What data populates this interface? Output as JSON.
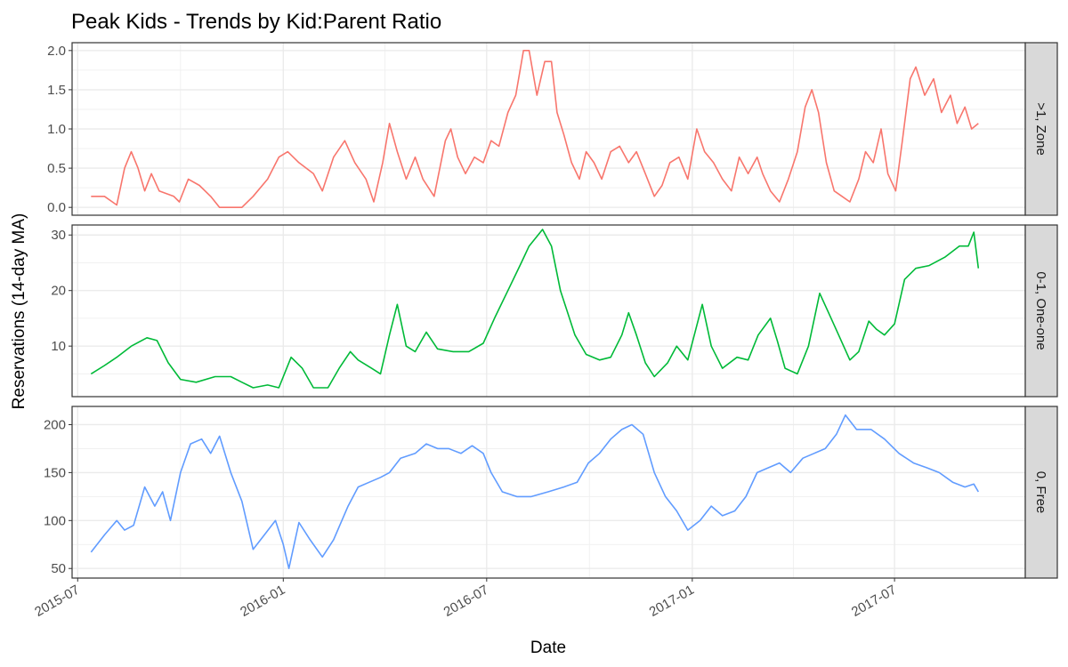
{
  "chart_data": {
    "type": "line",
    "title": "Peak Kids - Trends by Kid:Parent Ratio",
    "xlabel": "Date",
    "ylabel": "Reservations (14-day MA)",
    "x_range": [
      "2015-06-26",
      "2017-10-26"
    ],
    "x_ticks": [
      "2015-07",
      "2016-01",
      "2016-07",
      "2017-01",
      "2017-07"
    ],
    "grid": true,
    "legend": "none",
    "panels": [
      {
        "strip": ">1, Zone",
        "color": "#F8766D",
        "ylim": [
          -0.1,
          2.1
        ],
        "y_ticks": [
          "0.0",
          "0.5",
          "1.0",
          "1.5",
          "2.0"
        ],
        "points": [
          [
            "2015-07-13",
            0.14
          ],
          [
            "2015-07-25",
            0.14
          ],
          [
            "2015-08-01",
            0.07
          ],
          [
            "2015-08-05",
            0.03
          ],
          [
            "2015-08-12",
            0.5
          ],
          [
            "2015-08-18",
            0.71
          ],
          [
            "2015-08-24",
            0.5
          ],
          [
            "2015-08-30",
            0.21
          ],
          [
            "2015-09-05",
            0.43
          ],
          [
            "2015-09-12",
            0.21
          ],
          [
            "2015-09-25",
            0.14
          ],
          [
            "2015-09-30",
            0.07
          ],
          [
            "2015-10-08",
            0.36
          ],
          [
            "2015-10-18",
            0.28
          ],
          [
            "2015-10-28",
            0.14
          ],
          [
            "2015-11-05",
            0.0
          ],
          [
            "2015-11-25",
            0.0
          ],
          [
            "2015-12-05",
            0.14
          ],
          [
            "2015-12-18",
            0.36
          ],
          [
            "2015-12-28",
            0.64
          ],
          [
            "2016-01-05",
            0.71
          ],
          [
            "2016-01-15",
            0.57
          ],
          [
            "2016-01-28",
            0.43
          ],
          [
            "2016-02-05",
            0.21
          ],
          [
            "2016-02-15",
            0.64
          ],
          [
            "2016-02-25",
            0.85
          ],
          [
            "2016-03-05",
            0.57
          ],
          [
            "2016-03-15",
            0.36
          ],
          [
            "2016-03-22",
            0.07
          ],
          [
            "2016-03-30",
            0.57
          ],
          [
            "2016-04-05",
            1.07
          ],
          [
            "2016-04-12",
            0.71
          ],
          [
            "2016-04-20",
            0.36
          ],
          [
            "2016-04-28",
            0.64
          ],
          [
            "2016-05-05",
            0.36
          ],
          [
            "2016-05-15",
            0.14
          ],
          [
            "2016-05-25",
            0.85
          ],
          [
            "2016-05-30",
            1.0
          ],
          [
            "2016-06-05",
            0.64
          ],
          [
            "2016-06-12",
            0.43
          ],
          [
            "2016-06-20",
            0.64
          ],
          [
            "2016-06-28",
            0.57
          ],
          [
            "2016-07-05",
            0.85
          ],
          [
            "2016-07-12",
            0.78
          ],
          [
            "2016-07-20",
            1.21
          ],
          [
            "2016-07-27",
            1.43
          ],
          [
            "2016-08-03",
            2.0
          ],
          [
            "2016-08-08",
            2.0
          ],
          [
            "2016-08-15",
            1.43
          ],
          [
            "2016-08-22",
            1.86
          ],
          [
            "2016-08-28",
            1.86
          ],
          [
            "2016-09-02",
            1.21
          ],
          [
            "2016-09-08",
            0.93
          ],
          [
            "2016-09-15",
            0.57
          ],
          [
            "2016-09-22",
            0.36
          ],
          [
            "2016-09-28",
            0.71
          ],
          [
            "2016-10-05",
            0.57
          ],
          [
            "2016-10-12",
            0.36
          ],
          [
            "2016-10-20",
            0.71
          ],
          [
            "2016-10-28",
            0.78
          ],
          [
            "2016-11-05",
            0.57
          ],
          [
            "2016-11-12",
            0.71
          ],
          [
            "2016-11-20",
            0.43
          ],
          [
            "2016-11-28",
            0.14
          ],
          [
            "2016-12-05",
            0.28
          ],
          [
            "2016-12-12",
            0.57
          ],
          [
            "2016-12-20",
            0.64
          ],
          [
            "2016-12-28",
            0.36
          ],
          [
            "2017-01-05",
            1.0
          ],
          [
            "2017-01-12",
            0.71
          ],
          [
            "2017-01-20",
            0.57
          ],
          [
            "2017-01-28",
            0.36
          ],
          [
            "2017-02-05",
            0.21
          ],
          [
            "2017-02-12",
            0.64
          ],
          [
            "2017-02-20",
            0.43
          ],
          [
            "2017-02-28",
            0.64
          ],
          [
            "2017-03-05",
            0.43
          ],
          [
            "2017-03-12",
            0.21
          ],
          [
            "2017-03-20",
            0.07
          ],
          [
            "2017-03-28",
            0.36
          ],
          [
            "2017-04-05",
            0.71
          ],
          [
            "2017-04-12",
            1.28
          ],
          [
            "2017-04-18",
            1.5
          ],
          [
            "2017-04-24",
            1.21
          ],
          [
            "2017-05-01",
            0.57
          ],
          [
            "2017-05-08",
            0.21
          ],
          [
            "2017-05-15",
            0.14
          ],
          [
            "2017-05-22",
            0.07
          ],
          [
            "2017-05-30",
            0.36
          ],
          [
            "2017-06-05",
            0.71
          ],
          [
            "2017-06-12",
            0.57
          ],
          [
            "2017-06-19",
            1.0
          ],
          [
            "2017-06-25",
            0.43
          ],
          [
            "2017-07-02",
            0.21
          ],
          [
            "2017-07-08",
            0.85
          ],
          [
            "2017-07-15",
            1.64
          ],
          [
            "2017-07-20",
            1.79
          ],
          [
            "2017-07-28",
            1.43
          ],
          [
            "2017-08-05",
            1.64
          ],
          [
            "2017-08-12",
            1.21
          ],
          [
            "2017-08-20",
            1.43
          ],
          [
            "2017-08-26",
            1.07
          ],
          [
            "2017-09-02",
            1.28
          ],
          [
            "2017-09-08",
            1.0
          ],
          [
            "2017-09-14",
            1.07
          ]
        ]
      },
      {
        "strip": "0-1, One-one",
        "color": "#00BA38",
        "ylim": [
          0.9,
          31.8
        ],
        "y_ticks": [
          "10",
          "20",
          "30"
        ],
        "points": [
          [
            "2015-07-13",
            5.0
          ],
          [
            "2015-07-25",
            6.5
          ],
          [
            "2015-08-05",
            8.0
          ],
          [
            "2015-08-18",
            10.0
          ],
          [
            "2015-09-01",
            11.5
          ],
          [
            "2015-09-10",
            11.0
          ],
          [
            "2015-09-20",
            7.0
          ],
          [
            "2015-10-01",
            4.0
          ],
          [
            "2015-10-15",
            3.5
          ],
          [
            "2015-11-01",
            4.5
          ],
          [
            "2015-11-15",
            4.5
          ],
          [
            "2015-11-25",
            3.5
          ],
          [
            "2015-12-05",
            2.5
          ],
          [
            "2015-12-18",
            3.0
          ],
          [
            "2015-12-28",
            2.5
          ],
          [
            "2016-01-08",
            8.0
          ],
          [
            "2016-01-18",
            6.0
          ],
          [
            "2016-01-28",
            2.5
          ],
          [
            "2016-02-10",
            2.5
          ],
          [
            "2016-02-20",
            6.0
          ],
          [
            "2016-03-01",
            9.0
          ],
          [
            "2016-03-08",
            7.5
          ],
          [
            "2016-03-20",
            6.0
          ],
          [
            "2016-03-28",
            5.0
          ],
          [
            "2016-04-05",
            12.0
          ],
          [
            "2016-04-12",
            17.5
          ],
          [
            "2016-04-20",
            10.0
          ],
          [
            "2016-04-28",
            9.0
          ],
          [
            "2016-05-08",
            12.5
          ],
          [
            "2016-05-18",
            9.5
          ],
          [
            "2016-06-01",
            9.0
          ],
          [
            "2016-06-15",
            9.0
          ],
          [
            "2016-06-28",
            10.5
          ],
          [
            "2016-07-08",
            15.0
          ],
          [
            "2016-07-20",
            20.0
          ],
          [
            "2016-08-01",
            25.0
          ],
          [
            "2016-08-08",
            28.0
          ],
          [
            "2016-08-20",
            31.0
          ],
          [
            "2016-08-28",
            28.0
          ],
          [
            "2016-09-05",
            20.0
          ],
          [
            "2016-09-18",
            12.0
          ],
          [
            "2016-09-28",
            8.5
          ],
          [
            "2016-10-10",
            7.5
          ],
          [
            "2016-10-20",
            8.0
          ],
          [
            "2016-10-30",
            12.0
          ],
          [
            "2016-11-05",
            16.0
          ],
          [
            "2016-11-12",
            12.0
          ],
          [
            "2016-11-20",
            7.0
          ],
          [
            "2016-11-28",
            4.5
          ],
          [
            "2016-12-10",
            7.0
          ],
          [
            "2016-12-18",
            10.0
          ],
          [
            "2016-12-28",
            7.5
          ],
          [
            "2017-01-10",
            17.5
          ],
          [
            "2017-01-18",
            10.0
          ],
          [
            "2017-01-28",
            6.0
          ],
          [
            "2017-02-10",
            8.0
          ],
          [
            "2017-02-20",
            7.5
          ],
          [
            "2017-03-01",
            12.0
          ],
          [
            "2017-03-12",
            15.0
          ],
          [
            "2017-03-18",
            11.0
          ],
          [
            "2017-03-25",
            6.0
          ],
          [
            "2017-04-05",
            5.0
          ],
          [
            "2017-04-15",
            10.0
          ],
          [
            "2017-04-25",
            19.5
          ],
          [
            "2017-05-03",
            16.0
          ],
          [
            "2017-05-12",
            12.0
          ],
          [
            "2017-05-22",
            7.5
          ],
          [
            "2017-05-30",
            9.0
          ],
          [
            "2017-06-08",
            14.5
          ],
          [
            "2017-06-15",
            13.0
          ],
          [
            "2017-06-22",
            12.0
          ],
          [
            "2017-07-01",
            14.0
          ],
          [
            "2017-07-10",
            22.0
          ],
          [
            "2017-07-20",
            24.0
          ],
          [
            "2017-08-01",
            24.5
          ],
          [
            "2017-08-15",
            26.0
          ],
          [
            "2017-08-28",
            28.0
          ],
          [
            "2017-09-05",
            28.0
          ],
          [
            "2017-09-10",
            30.5
          ],
          [
            "2017-09-14",
            24.0
          ]
        ]
      },
      {
        "strip": "0, Free",
        "color": "#619CFF",
        "ylim": [
          40,
          219
        ],
        "y_ticks": [
          "50",
          "100",
          "150",
          "200"
        ],
        "points": [
          [
            "2015-07-13",
            67
          ],
          [
            "2015-07-25",
            85
          ],
          [
            "2015-08-05",
            100
          ],
          [
            "2015-08-12",
            90
          ],
          [
            "2015-08-20",
            95
          ],
          [
            "2015-08-30",
            135
          ],
          [
            "2015-09-08",
            115
          ],
          [
            "2015-09-15",
            130
          ],
          [
            "2015-09-22",
            100
          ],
          [
            "2015-10-01",
            150
          ],
          [
            "2015-10-10",
            180
          ],
          [
            "2015-10-20",
            185
          ],
          [
            "2015-10-28",
            170
          ],
          [
            "2015-11-05",
            188
          ],
          [
            "2015-11-15",
            150
          ],
          [
            "2015-11-25",
            120
          ],
          [
            "2015-12-05",
            70
          ],
          [
            "2015-12-15",
            85
          ],
          [
            "2015-12-25",
            100
          ],
          [
            "2016-01-01",
            75
          ],
          [
            "2016-01-06",
            50
          ],
          [
            "2016-01-15",
            98
          ],
          [
            "2016-01-25",
            80
          ],
          [
            "2016-02-05",
            62
          ],
          [
            "2016-02-15",
            80
          ],
          [
            "2016-02-28",
            115
          ],
          [
            "2016-03-08",
            135
          ],
          [
            "2016-03-18",
            140
          ],
          [
            "2016-03-28",
            145
          ],
          [
            "2016-04-05",
            150
          ],
          [
            "2016-04-15",
            165
          ],
          [
            "2016-04-28",
            170
          ],
          [
            "2016-05-08",
            180
          ],
          [
            "2016-05-18",
            175
          ],
          [
            "2016-05-28",
            175
          ],
          [
            "2016-06-08",
            170
          ],
          [
            "2016-06-18",
            178
          ],
          [
            "2016-06-28",
            170
          ],
          [
            "2016-07-05",
            150
          ],
          [
            "2016-07-15",
            130
          ],
          [
            "2016-07-28",
            125
          ],
          [
            "2016-08-10",
            125
          ],
          [
            "2016-08-25",
            130
          ],
          [
            "2016-09-08",
            135
          ],
          [
            "2016-09-20",
            140
          ],
          [
            "2016-09-30",
            160
          ],
          [
            "2016-10-10",
            170
          ],
          [
            "2016-10-20",
            185
          ],
          [
            "2016-10-30",
            195
          ],
          [
            "2016-11-08",
            200
          ],
          [
            "2016-11-18",
            190
          ],
          [
            "2016-11-28",
            150
          ],
          [
            "2016-12-08",
            125
          ],
          [
            "2016-12-18",
            110
          ],
          [
            "2016-12-28",
            90
          ],
          [
            "2017-01-08",
            100
          ],
          [
            "2017-01-18",
            115
          ],
          [
            "2017-01-28",
            105
          ],
          [
            "2017-02-08",
            110
          ],
          [
            "2017-02-18",
            125
          ],
          [
            "2017-02-28",
            150
          ],
          [
            "2017-03-10",
            155
          ],
          [
            "2017-03-20",
            160
          ],
          [
            "2017-03-30",
            150
          ],
          [
            "2017-04-10",
            165
          ],
          [
            "2017-04-20",
            170
          ],
          [
            "2017-04-30",
            175
          ],
          [
            "2017-05-10",
            190
          ],
          [
            "2017-05-18",
            210
          ],
          [
            "2017-05-28",
            195
          ],
          [
            "2017-06-10",
            195
          ],
          [
            "2017-06-22",
            185
          ],
          [
            "2017-07-05",
            170
          ],
          [
            "2017-07-18",
            160
          ],
          [
            "2017-07-30",
            155
          ],
          [
            "2017-08-10",
            150
          ],
          [
            "2017-08-22",
            140
          ],
          [
            "2017-09-02",
            135
          ],
          [
            "2017-09-10",
            138
          ],
          [
            "2017-09-14",
            130
          ]
        ]
      }
    ]
  }
}
